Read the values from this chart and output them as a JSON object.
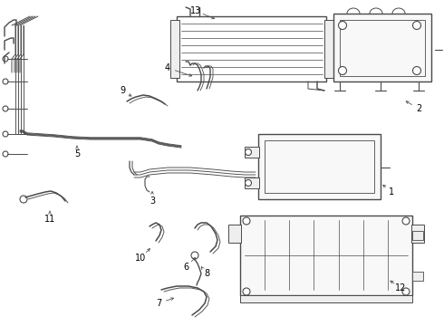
{
  "bg_color": "#ffffff",
  "line_color": "#4a4a4a",
  "label_color": "#000000",
  "lw": 0.9,
  "figsize": [
    4.9,
    3.6
  ],
  "dpi": 100
}
